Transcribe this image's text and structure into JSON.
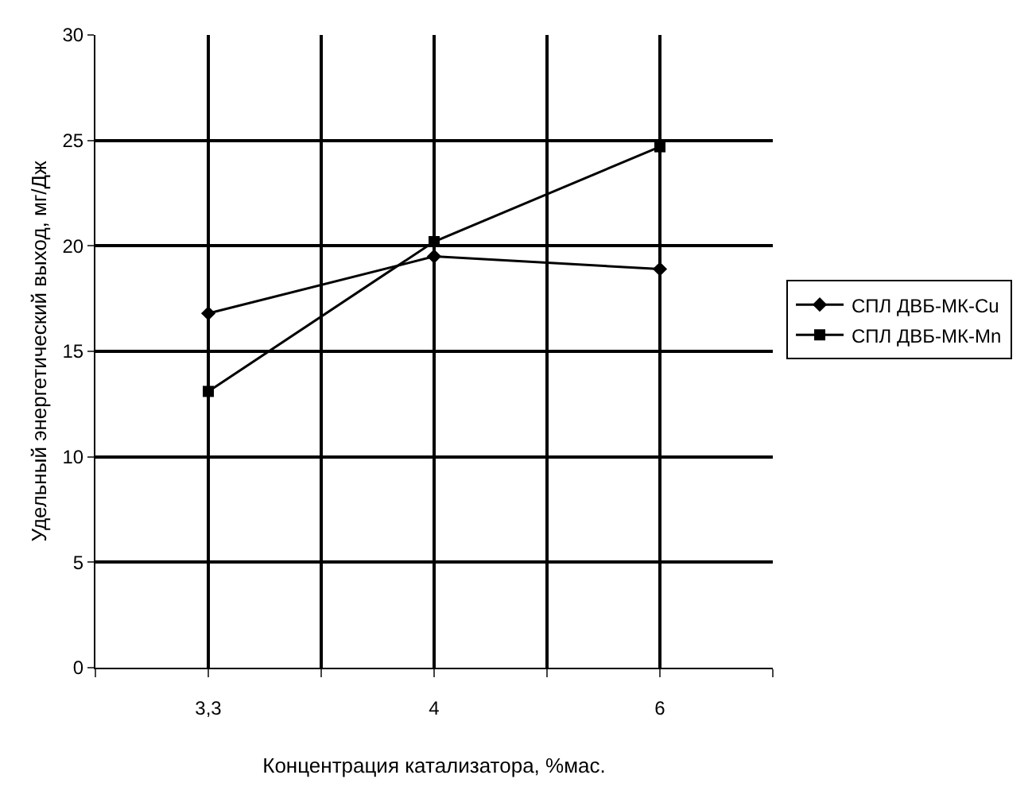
{
  "chart_data": {
    "type": "line",
    "xlabel": "Концентрация катализатора, %мас.",
    "ylabel": "Удельный энергетический выход, мг/Дж",
    "categories": [
      "3,3",
      "4",
      "6"
    ],
    "series": [
      {
        "name": "СПЛ ДВБ-МК-Cu",
        "color": "#000000",
        "marker": "diamond",
        "values": [
          16.8,
          19.5,
          18.9
        ]
      },
      {
        "name": "СПЛ ДВБ-МК-Mn",
        "color": "#000000",
        "marker": "square",
        "values": [
          13.1,
          20.2,
          24.7
        ]
      }
    ],
    "ylim": [
      0,
      30
    ],
    "yticks": [
      0,
      5,
      10,
      15,
      20,
      25,
      30
    ],
    "grid": true,
    "legend": "right",
    "line_style": "solid"
  }
}
